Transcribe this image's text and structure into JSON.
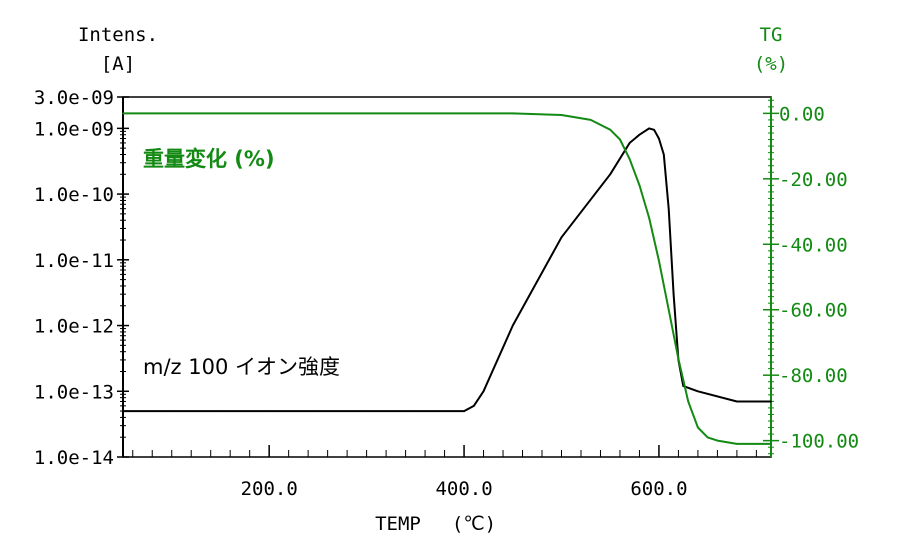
{
  "chart_data": {
    "type": "line",
    "x_axis": {
      "label": "TEMP",
      "unit_label": "(℃)",
      "range": [
        50,
        715
      ],
      "tick_labels": [
        "200.0",
        "400.0",
        "600.0"
      ],
      "tick_values": [
        200,
        400,
        600
      ],
      "minor_tick_step": 20
    },
    "y_left": {
      "label": "Intens.",
      "unit_label": "[A]",
      "scale": "log",
      "range": [
        1e-14,
        3e-09
      ],
      "tick_labels": [
        "3.0e-09",
        "1.0e-09",
        "1.0e-10",
        "1.0e-11",
        "1.0e-12",
        "1.0e-13",
        "1.0e-14"
      ],
      "tick_values": [
        3e-09,
        1e-09,
        1e-10,
        1e-11,
        1e-12,
        1e-13,
        1e-14
      ]
    },
    "y_right": {
      "label": "TG",
      "unit_label": "(%)",
      "scale": "linear",
      "range": [
        -105,
        5
      ],
      "tick_labels": [
        "0.00",
        "-20.00",
        "-40.00",
        "-60.00",
        "-80.00",
        "-100.00"
      ],
      "tick_values": [
        0,
        -20,
        -40,
        -60,
        -80,
        -100
      ]
    },
    "series": [
      {
        "name": "m/z 100 イオン強度",
        "axis": "left",
        "color": "#000000",
        "x": [
          50,
          100,
          150,
          200,
          250,
          300,
          350,
          400,
          410,
          420,
          450,
          500,
          550,
          570,
          580,
          590,
          595,
          600,
          605,
          610,
          615,
          620,
          625,
          640,
          680,
          715
        ],
        "y": [
          5e-14,
          5e-14,
          5e-14,
          5e-14,
          5e-14,
          5e-14,
          5e-14,
          5e-14,
          6e-14,
          1e-13,
          1e-12,
          2.2e-11,
          2e-10,
          6e-10,
          8e-10,
          1e-09,
          9.5e-10,
          7e-10,
          4e-10,
          6e-11,
          3e-12,
          3e-13,
          1.2e-13,
          1e-13,
          7e-14,
          7e-14
        ]
      },
      {
        "name": "重量変化 (%)",
        "axis": "right",
        "color": "#138a13",
        "x": [
          50,
          100,
          200,
          300,
          400,
          450,
          500,
          530,
          550,
          560,
          570,
          580,
          590,
          600,
          610,
          620,
          630,
          640,
          650,
          660,
          680,
          715
        ],
        "y": [
          0,
          0,
          0,
          0,
          0,
          0,
          -0.5,
          -2,
          -5,
          -8,
          -14,
          -22,
          -32,
          -45,
          -60,
          -75,
          -88,
          -96,
          -99,
          -100,
          -101,
          -101
        ]
      }
    ],
    "legend": [
      {
        "text": "重量変化 (%)",
        "color": "#138a13",
        "placement": "top-left inside"
      },
      {
        "text": "m/z 100 イオン強度",
        "color": "#000000",
        "placement": "bottom-left inside"
      }
    ],
    "colors": {
      "left_axis": "#000000",
      "right_axis": "#138a13",
      "frame": "#000000"
    },
    "grid": false
  }
}
